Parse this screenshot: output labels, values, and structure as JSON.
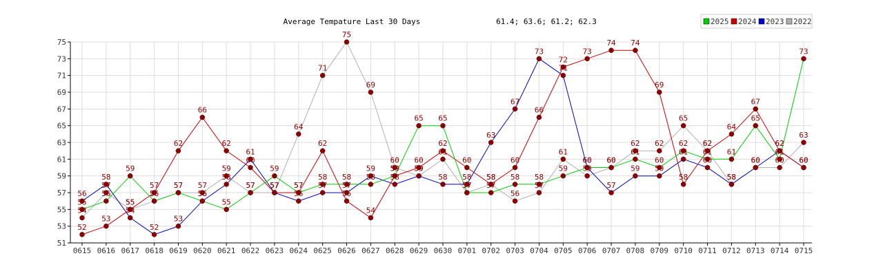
{
  "chart_data": {
    "type": "line",
    "title": "Average Tempature Last 30 Days",
    "subtitle": "61.4; 63.6; 61.2; 62.3",
    "xlabel": "",
    "ylabel": "",
    "categories": [
      "0615",
      "0616",
      "0617",
      "0618",
      "0619",
      "0620",
      "0621",
      "0622",
      "0623",
      "0624",
      "0625",
      "0626",
      "0627",
      "0628",
      "0629",
      "0630",
      "0701",
      "0702",
      "0703",
      "0704",
      "0705",
      "0706",
      "0707",
      "0708",
      "0709",
      "0710",
      "0711",
      "0712",
      "0713",
      "0714",
      "0715"
    ],
    "ylim": [
      51,
      75
    ],
    "yticks": [
      51,
      53,
      55,
      57,
      59,
      61,
      63,
      65,
      67,
      69,
      71,
      73,
      75
    ],
    "grid": true,
    "legend_position": "top-right",
    "series": [
      {
        "name": "2025",
        "color": "#00cc00",
        "values": [
          55,
          56,
          59,
          56,
          57,
          56,
          55,
          57,
          59,
          57,
          58,
          58,
          58,
          59,
          65,
          65,
          57,
          57,
          58,
          58,
          59,
          60,
          60,
          61,
          60,
          62,
          61,
          61,
          65,
          61,
          73
        ]
      },
      {
        "name": "2024",
        "color": "#cc0000",
        "values": [
          52,
          53,
          55,
          57,
          62,
          66,
          62,
          60,
          57,
          57,
          62,
          56,
          54,
          59,
          60,
          62,
          60,
          58,
          60,
          66,
          72,
          73,
          74,
          74,
          69,
          58,
          62,
          64,
          67,
          62,
          60
        ]
      },
      {
        "name": "2023",
        "color": "#0000cc",
        "values": [
          56,
          58,
          54,
          52,
          53,
          56,
          58,
          61,
          57,
          56,
          57,
          57,
          59,
          58,
          59,
          58,
          58,
          63,
          67,
          73,
          71,
          60,
          57,
          59,
          59,
          61,
          60,
          58,
          60,
          62,
          60
        ]
      },
      {
        "name": "2022",
        "color": "#b0b0b0",
        "values": [
          54,
          57,
          55,
          56,
          57,
          57,
          59,
          57,
          57,
          64,
          71,
          75,
          69,
          60,
          59,
          61,
          57,
          58,
          56,
          57,
          61,
          59,
          60,
          62,
          62,
          65,
          62,
          58,
          60,
          60,
          63
        ]
      }
    ]
  }
}
